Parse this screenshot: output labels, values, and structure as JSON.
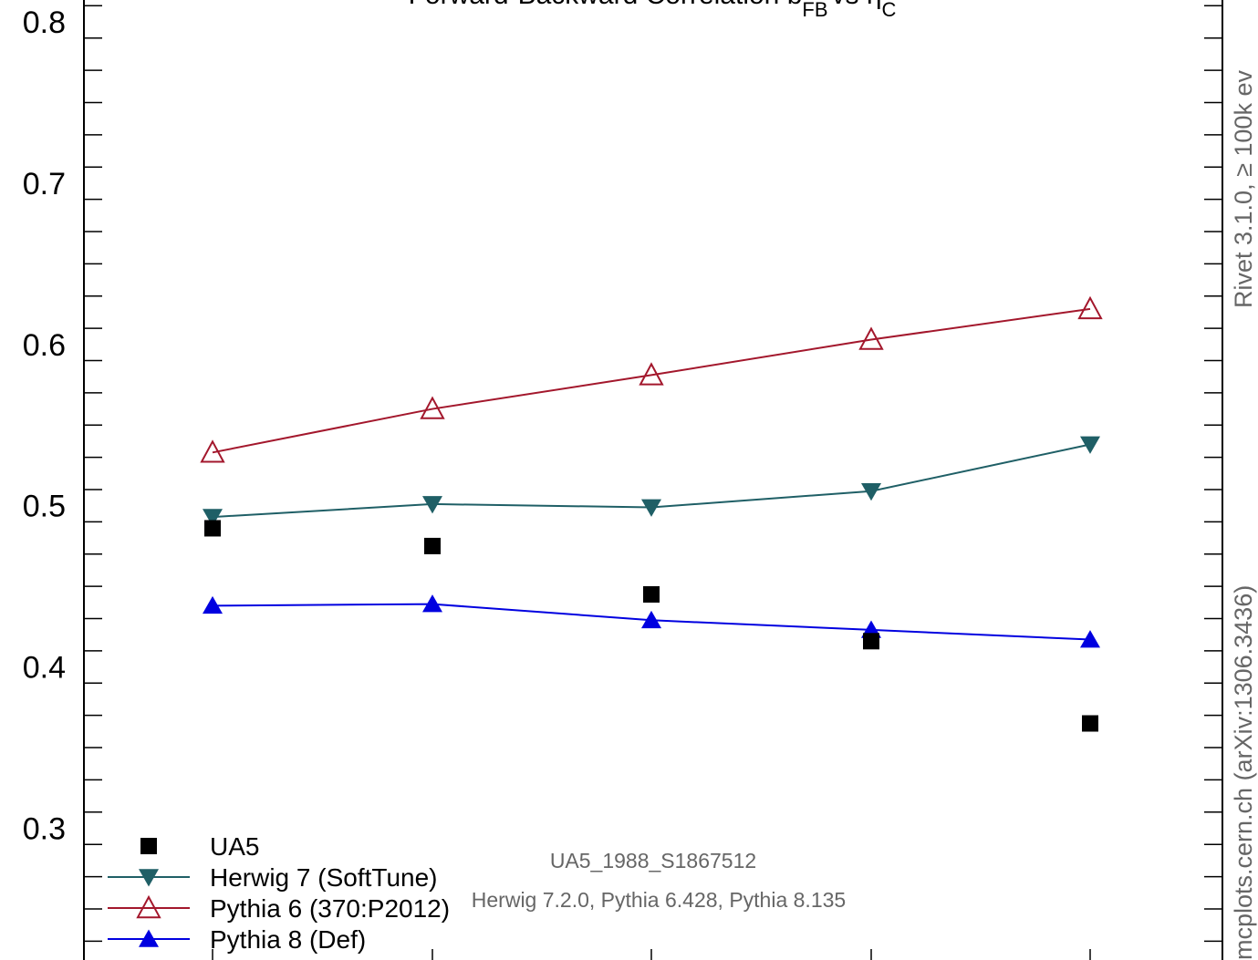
{
  "chart_data": {
    "type": "line",
    "title": "Forward-Backward Correlation b",
    "title_sub": "FB",
    "title_vs": "vs η",
    "title_sub2": "C",
    "x": [
      1,
      2,
      3,
      4,
      5
    ],
    "ylim": [
      0.22,
      0.813
    ],
    "y_ticks": [
      "0.3",
      "0.4",
      "0.5",
      "0.6",
      "0.7",
      "0.8"
    ],
    "y_tick_values": [
      0.3,
      0.4,
      0.5,
      0.6,
      0.7,
      0.8
    ],
    "series": [
      {
        "name": "UA5",
        "marker": "square",
        "color": "#000000",
        "line": false,
        "values": [
          0.486,
          0.475,
          0.445,
          0.416,
          0.365
        ]
      },
      {
        "name": "Herwig 7 (SoftTune)",
        "marker": "triangle-down",
        "color": "#1f5f66",
        "line": true,
        "values": [
          0.493,
          0.501,
          0.499,
          0.509,
          0.538
        ]
      },
      {
        "name": "Pythia 6 (370:P2012)",
        "marker": "triangle-up-open",
        "color": "#a3172c",
        "line": true,
        "values": [
          0.533,
          0.56,
          0.581,
          0.603,
          0.622
        ]
      },
      {
        "name": "Pythia 8 (Def)",
        "marker": "triangle-up",
        "color": "#0000e0",
        "line": true,
        "values": [
          0.438,
          0.439,
          0.429,
          0.423,
          0.417
        ]
      }
    ],
    "legend_position": "bottom-left",
    "grid": false
  },
  "annotations": {
    "analysis": "UA5_1988_S1867512",
    "generators": "Herwig 7.2.0, Pythia 6.428, Pythia 8.135",
    "right_label_top": "Rivet 3.1.0, ≥ 100k ev",
    "right_label_bottom": "mcplots.cern.ch (arXiv:1306.3436)"
  }
}
